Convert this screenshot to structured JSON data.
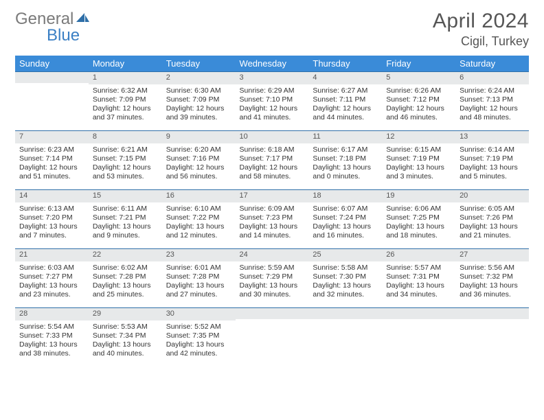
{
  "logo": {
    "part1": "General",
    "part2": "Blue"
  },
  "title": "April 2024",
  "location": "Cigil, Turkey",
  "headers": [
    "Sunday",
    "Monday",
    "Tuesday",
    "Wednesday",
    "Thursday",
    "Friday",
    "Saturday"
  ],
  "colors": {
    "header_bg": "#3a8bd8",
    "header_fg": "#ffffff",
    "daynum_bg": "#e7e9ea",
    "rule": "#2f6fa8",
    "logo_gray": "#7a7a7a",
    "logo_blue": "#3a7fc4"
  },
  "weeks": [
    [
      {
        "n": "",
        "sr": "",
        "ss": "",
        "d1": "",
        "d2": ""
      },
      {
        "n": "1",
        "sr": "Sunrise: 6:32 AM",
        "ss": "Sunset: 7:09 PM",
        "d1": "Daylight: 12 hours",
        "d2": "and 37 minutes."
      },
      {
        "n": "2",
        "sr": "Sunrise: 6:30 AM",
        "ss": "Sunset: 7:09 PM",
        "d1": "Daylight: 12 hours",
        "d2": "and 39 minutes."
      },
      {
        "n": "3",
        "sr": "Sunrise: 6:29 AM",
        "ss": "Sunset: 7:10 PM",
        "d1": "Daylight: 12 hours",
        "d2": "and 41 minutes."
      },
      {
        "n": "4",
        "sr": "Sunrise: 6:27 AM",
        "ss": "Sunset: 7:11 PM",
        "d1": "Daylight: 12 hours",
        "d2": "and 44 minutes."
      },
      {
        "n": "5",
        "sr": "Sunrise: 6:26 AM",
        "ss": "Sunset: 7:12 PM",
        "d1": "Daylight: 12 hours",
        "d2": "and 46 minutes."
      },
      {
        "n": "6",
        "sr": "Sunrise: 6:24 AM",
        "ss": "Sunset: 7:13 PM",
        "d1": "Daylight: 12 hours",
        "d2": "and 48 minutes."
      }
    ],
    [
      {
        "n": "7",
        "sr": "Sunrise: 6:23 AM",
        "ss": "Sunset: 7:14 PM",
        "d1": "Daylight: 12 hours",
        "d2": "and 51 minutes."
      },
      {
        "n": "8",
        "sr": "Sunrise: 6:21 AM",
        "ss": "Sunset: 7:15 PM",
        "d1": "Daylight: 12 hours",
        "d2": "and 53 minutes."
      },
      {
        "n": "9",
        "sr": "Sunrise: 6:20 AM",
        "ss": "Sunset: 7:16 PM",
        "d1": "Daylight: 12 hours",
        "d2": "and 56 minutes."
      },
      {
        "n": "10",
        "sr": "Sunrise: 6:18 AM",
        "ss": "Sunset: 7:17 PM",
        "d1": "Daylight: 12 hours",
        "d2": "and 58 minutes."
      },
      {
        "n": "11",
        "sr": "Sunrise: 6:17 AM",
        "ss": "Sunset: 7:18 PM",
        "d1": "Daylight: 13 hours",
        "d2": "and 0 minutes."
      },
      {
        "n": "12",
        "sr": "Sunrise: 6:15 AM",
        "ss": "Sunset: 7:19 PM",
        "d1": "Daylight: 13 hours",
        "d2": "and 3 minutes."
      },
      {
        "n": "13",
        "sr": "Sunrise: 6:14 AM",
        "ss": "Sunset: 7:19 PM",
        "d1": "Daylight: 13 hours",
        "d2": "and 5 minutes."
      }
    ],
    [
      {
        "n": "14",
        "sr": "Sunrise: 6:13 AM",
        "ss": "Sunset: 7:20 PM",
        "d1": "Daylight: 13 hours",
        "d2": "and 7 minutes."
      },
      {
        "n": "15",
        "sr": "Sunrise: 6:11 AM",
        "ss": "Sunset: 7:21 PM",
        "d1": "Daylight: 13 hours",
        "d2": "and 9 minutes."
      },
      {
        "n": "16",
        "sr": "Sunrise: 6:10 AM",
        "ss": "Sunset: 7:22 PM",
        "d1": "Daylight: 13 hours",
        "d2": "and 12 minutes."
      },
      {
        "n": "17",
        "sr": "Sunrise: 6:09 AM",
        "ss": "Sunset: 7:23 PM",
        "d1": "Daylight: 13 hours",
        "d2": "and 14 minutes."
      },
      {
        "n": "18",
        "sr": "Sunrise: 6:07 AM",
        "ss": "Sunset: 7:24 PM",
        "d1": "Daylight: 13 hours",
        "d2": "and 16 minutes."
      },
      {
        "n": "19",
        "sr": "Sunrise: 6:06 AM",
        "ss": "Sunset: 7:25 PM",
        "d1": "Daylight: 13 hours",
        "d2": "and 18 minutes."
      },
      {
        "n": "20",
        "sr": "Sunrise: 6:05 AM",
        "ss": "Sunset: 7:26 PM",
        "d1": "Daylight: 13 hours",
        "d2": "and 21 minutes."
      }
    ],
    [
      {
        "n": "21",
        "sr": "Sunrise: 6:03 AM",
        "ss": "Sunset: 7:27 PM",
        "d1": "Daylight: 13 hours",
        "d2": "and 23 minutes."
      },
      {
        "n": "22",
        "sr": "Sunrise: 6:02 AM",
        "ss": "Sunset: 7:28 PM",
        "d1": "Daylight: 13 hours",
        "d2": "and 25 minutes."
      },
      {
        "n": "23",
        "sr": "Sunrise: 6:01 AM",
        "ss": "Sunset: 7:28 PM",
        "d1": "Daylight: 13 hours",
        "d2": "and 27 minutes."
      },
      {
        "n": "24",
        "sr": "Sunrise: 5:59 AM",
        "ss": "Sunset: 7:29 PM",
        "d1": "Daylight: 13 hours",
        "d2": "and 30 minutes."
      },
      {
        "n": "25",
        "sr": "Sunrise: 5:58 AM",
        "ss": "Sunset: 7:30 PM",
        "d1": "Daylight: 13 hours",
        "d2": "and 32 minutes."
      },
      {
        "n": "26",
        "sr": "Sunrise: 5:57 AM",
        "ss": "Sunset: 7:31 PM",
        "d1": "Daylight: 13 hours",
        "d2": "and 34 minutes."
      },
      {
        "n": "27",
        "sr": "Sunrise: 5:56 AM",
        "ss": "Sunset: 7:32 PM",
        "d1": "Daylight: 13 hours",
        "d2": "and 36 minutes."
      }
    ],
    [
      {
        "n": "28",
        "sr": "Sunrise: 5:54 AM",
        "ss": "Sunset: 7:33 PM",
        "d1": "Daylight: 13 hours",
        "d2": "and 38 minutes."
      },
      {
        "n": "29",
        "sr": "Sunrise: 5:53 AM",
        "ss": "Sunset: 7:34 PM",
        "d1": "Daylight: 13 hours",
        "d2": "and 40 minutes."
      },
      {
        "n": "30",
        "sr": "Sunrise: 5:52 AM",
        "ss": "Sunset: 7:35 PM",
        "d1": "Daylight: 13 hours",
        "d2": "and 42 minutes."
      },
      {
        "n": "",
        "sr": "",
        "ss": "",
        "d1": "",
        "d2": ""
      },
      {
        "n": "",
        "sr": "",
        "ss": "",
        "d1": "",
        "d2": ""
      },
      {
        "n": "",
        "sr": "",
        "ss": "",
        "d1": "",
        "d2": ""
      },
      {
        "n": "",
        "sr": "",
        "ss": "",
        "d1": "",
        "d2": ""
      }
    ]
  ]
}
